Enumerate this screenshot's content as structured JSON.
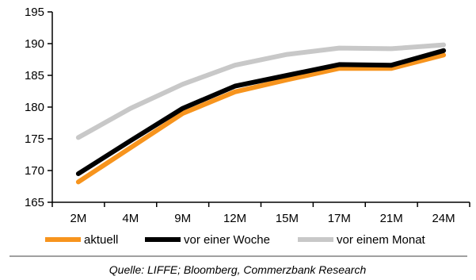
{
  "chart_data": {
    "type": "line",
    "categories": [
      "2M",
      "4M",
      "9M",
      "12M",
      "15M",
      "17M",
      "21M",
      "24M"
    ],
    "ylim": [
      165,
      195
    ],
    "yticks": [
      165,
      170,
      175,
      180,
      185,
      190,
      195
    ],
    "grid": false,
    "legend_position": "bottom",
    "series": [
      {
        "name": "vor einem Monat",
        "color": "#c8c8c8",
        "values": [
          175.2,
          179.8,
          183.6,
          186.6,
          188.3,
          189.3,
          189.2,
          189.8
        ]
      },
      {
        "name": "aktuell",
        "color": "#f7941d",
        "values": [
          168.2,
          173.6,
          179.0,
          182.4,
          184.3,
          186.1,
          186.1,
          188.2
        ]
      },
      {
        "name": "vor einer Woche",
        "color": "#000000",
        "values": [
          169.5,
          174.7,
          179.8,
          183.3,
          185.0,
          186.7,
          186.6,
          188.9
        ]
      }
    ],
    "legend": [
      {
        "label": "aktuell",
        "color": "#f7941d"
      },
      {
        "label": "vor einer Woche",
        "color": "#000000"
      },
      {
        "label": "vor einem Monat",
        "color": "#c8c8c8"
      }
    ],
    "source": "Quelle: LIFFE; Bloomberg, Commerzbank Research"
  }
}
